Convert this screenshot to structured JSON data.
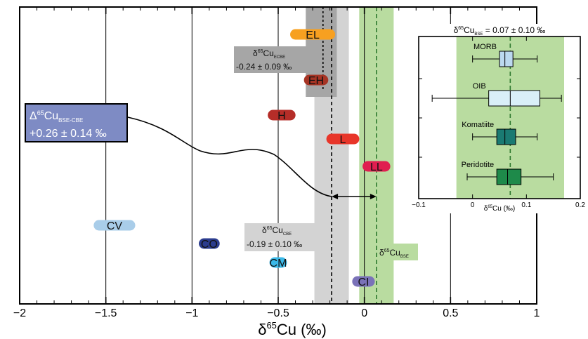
{
  "chart_data": [
    {
      "type": "scatter",
      "xlabel_main": "δ",
      "xlabel_sup": "65",
      "xlabel_rest": "Cu (‰)",
      "xlim": [
        -2,
        1
      ],
      "xticks": [
        -2,
        -1.5,
        -1,
        -0.5,
        0,
        0.5,
        1
      ],
      "xtick_labels": [
        "−2",
        "−1.5",
        "−1",
        "−0.5",
        "0",
        "0.5",
        "1"
      ],
      "vlines": [
        -1.5,
        -1,
        -0.5,
        0,
        0.5
      ],
      "bands": [
        {
          "name": "CBE",
          "center": -0.19,
          "lo": -0.29,
          "hi": -0.09,
          "color": "#d3d3d3"
        },
        {
          "name": "BSE",
          "center": 0.07,
          "lo": -0.03,
          "hi": 0.17,
          "color": "#b9dca0"
        }
      ],
      "ecbe_band": {
        "lo": -0.34,
        "hi": -0.16,
        "color": "#a6a6a6",
        "center": -0.24
      },
      "groups": [
        {
          "label": "EL",
          "lo": -0.4,
          "hi": -0.2,
          "row": 1,
          "color": "#f7a020"
        },
        {
          "label": "EH",
          "lo": -0.32,
          "hi": -0.24,
          "row": 2,
          "color": "#a63424"
        },
        {
          "label": "H",
          "lo": -0.53,
          "hi": -0.43,
          "row": 3,
          "color": "#b52d28"
        },
        {
          "label": "L",
          "lo": -0.19,
          "hi": -0.06,
          "row": 4,
          "color": "#e8362a"
        },
        {
          "label": "LL",
          "lo": 0.02,
          "hi": 0.12,
          "row": 5,
          "color": "#e01e50"
        },
        {
          "label": "CV",
          "lo": -1.54,
          "hi": -1.36,
          "row": 6,
          "color": "#a9cde9"
        },
        {
          "label": "CO",
          "lo": -0.93,
          "hi": -0.87,
          "row": 7,
          "color": "#2b3c8e"
        },
        {
          "label": "CM",
          "lo": -0.52,
          "hi": -0.48,
          "row": 8,
          "color": "#3bb9e8"
        },
        {
          "label": "CI",
          "lo": -0.04,
          "hi": 0.03,
          "row": 9,
          "color": "#7a72b8"
        }
      ],
      "delta_box": {
        "line1": "Δ",
        "sup": "65",
        "sub": "Cu",
        "sub2": "BSE-CBE",
        "line2": "+0.26 ± 0.14 ‰",
        "color": "#7e8bc4"
      },
      "ecbe_label": {
        "pre": "δ",
        "sup": "65",
        "mid": "Cu",
        "sub": "ECBE",
        "value": "-0.24 ± 0.09 ‰"
      },
      "cbe_label": {
        "pre": "δ",
        "sup": "65",
        "mid": "Cu",
        "sub": "CBE",
        "value": "-0.19 ± 0.10 ‰"
      },
      "bse_label": {
        "pre": "δ",
        "sup": "65",
        "mid": "Cu",
        "sub": "BSE"
      }
    },
    {
      "type": "box",
      "title_pre": "δ",
      "title_sup": "65",
      "title_mid": "Cu",
      "title_sub": "BSE",
      "title_rest": " = 0.07 ± 0.10 ‰",
      "xlabel_pre": "δ",
      "xlabel_sup": "65",
      "xlabel_rest": "Cu (‰)",
      "xlim": [
        -0.1,
        0.2
      ],
      "xticks": [
        -0.1,
        0,
        0.1,
        0.2
      ],
      "xtick_labels": [
        "−0.1",
        "0",
        "0.1",
        "0.2"
      ],
      "band": {
        "lo": -0.03,
        "hi": 0.17,
        "center": 0.07,
        "color": "#b9dca0"
      },
      "boxes": [
        {
          "name": "MORB",
          "whisker_lo": 0.0,
          "q1": 0.05,
          "median": 0.06,
          "q3": 0.075,
          "whisker_hi": 0.12,
          "color": "#bcd9ef"
        },
        {
          "name": "OIB",
          "whisker_lo": -0.075,
          "q1": 0.03,
          "median": 0.07,
          "q3": 0.125,
          "whisker_hi": 0.165,
          "color": "#d9eff8"
        },
        {
          "name": "Komatiite",
          "whisker_lo": 0.0,
          "q1": 0.045,
          "median": 0.06,
          "q3": 0.08,
          "whisker_hi": 0.12,
          "color": "#1a7a72"
        },
        {
          "name": "Peridotite",
          "whisker_lo": -0.01,
          "q1": 0.045,
          "median": 0.065,
          "q3": 0.09,
          "whisker_hi": 0.15,
          "color": "#1e8a4a"
        }
      ]
    }
  ]
}
